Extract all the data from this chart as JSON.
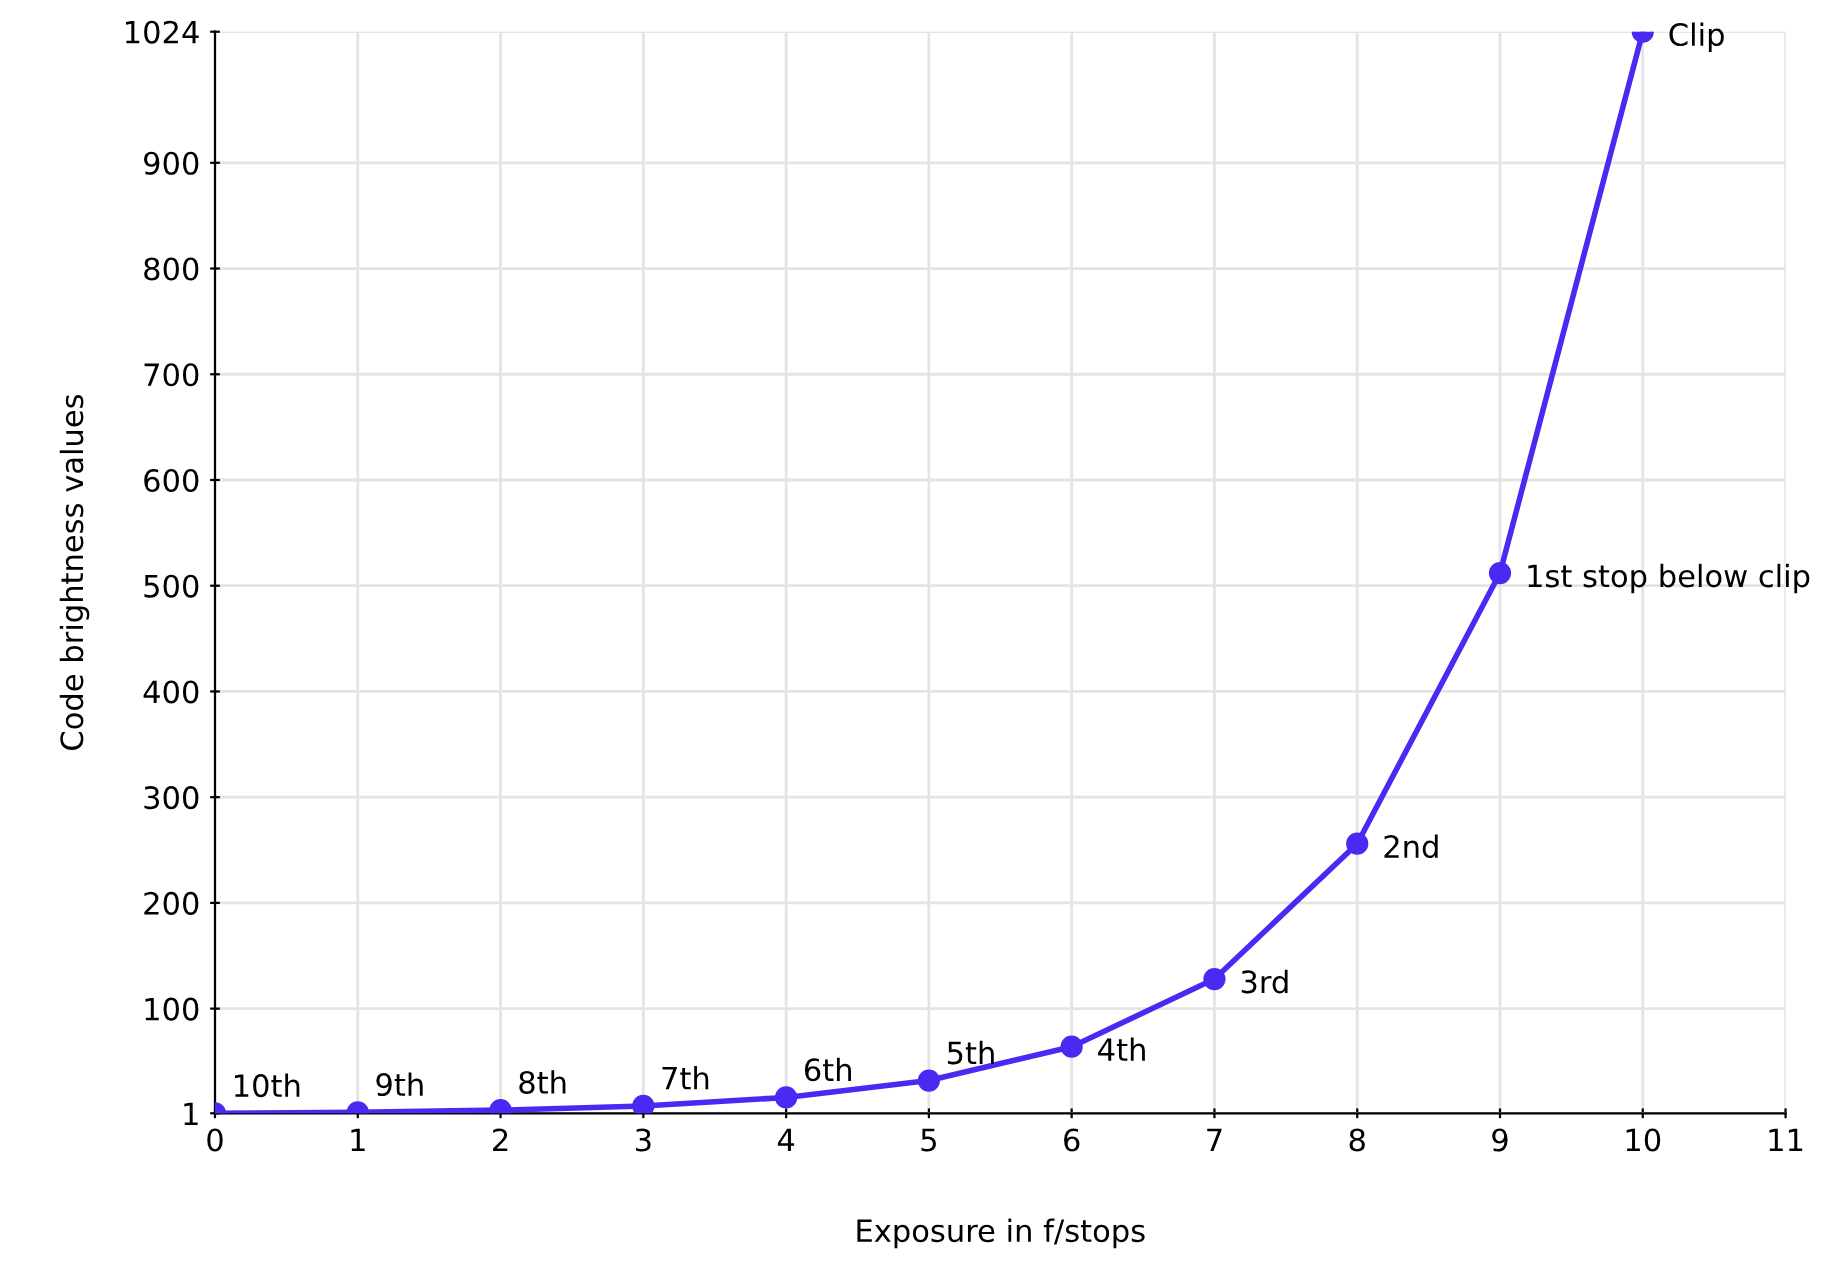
{
  "chart_data": {
    "type": "line",
    "xlabel": "Exposure in f/stops",
    "ylabel": "Code brightness values",
    "x": [
      0,
      1,
      2,
      3,
      4,
      5,
      6,
      7,
      8,
      9,
      10
    ],
    "series": [
      {
        "color": "#4a2af2",
        "values": [
          1,
          2,
          4,
          8,
          16,
          32,
          64,
          128,
          256,
          512,
          1024
        ]
      }
    ],
    "xlim": [
      0,
      11
    ],
    "xticks": [
      0,
      1,
      2,
      3,
      4,
      5,
      6,
      7,
      8,
      9,
      10,
      11
    ],
    "ylim": [
      1,
      1024
    ],
    "yticks": [
      1,
      100,
      200,
      300,
      400,
      500,
      600,
      700,
      800,
      900,
      1024
    ],
    "grid": true,
    "marker": "circle",
    "line_style": "solid",
    "annotations": [
      {
        "text": "10th",
        "x": 0,
        "y": 1
      },
      {
        "text": "9th",
        "x": 1,
        "y": 2
      },
      {
        "text": "8th",
        "x": 2,
        "y": 4
      },
      {
        "text": "7th",
        "x": 3,
        "y": 8
      },
      {
        "text": "6th",
        "x": 4,
        "y": 16
      },
      {
        "text": "5th",
        "x": 5,
        "y": 32
      },
      {
        "text": "4th",
        "x": 6,
        "y": 64
      },
      {
        "text": "3rd",
        "x": 7,
        "y": 128
      },
      {
        "text": "2nd",
        "x": 8,
        "y": 256
      },
      {
        "text": "1st stop below clip",
        "x": 9,
        "y": 512
      },
      {
        "text": "Clip",
        "x": 10,
        "y": 1024
      }
    ]
  }
}
